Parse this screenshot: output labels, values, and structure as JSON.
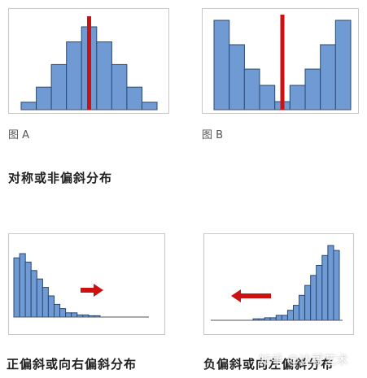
{
  "figures": [
    {
      "caption": "图 A",
      "hist": [
        1,
        3,
        6,
        9,
        11,
        9,
        6,
        3,
        1
      ],
      "direction": "none"
    },
    {
      "caption": "图 B",
      "hist": [
        11,
        8,
        5,
        3,
        1,
        3,
        5,
        8,
        11
      ],
      "direction": "none"
    },
    {
      "caption": "",
      "hist": [
        14,
        15,
        13,
        11,
        9,
        7,
        5,
        3,
        2,
        1,
        1,
        0.5,
        0.5,
        0.3,
        0.3
      ],
      "direction": "right"
    },
    {
      "caption": "",
      "hist": [
        0.3,
        0.3,
        0.5,
        0.5,
        1,
        1,
        2,
        3,
        5,
        7,
        9,
        11,
        13,
        15,
        14
      ],
      "direction": "left"
    }
  ],
  "headings": {
    "symmetric": "对称或非偏斜分布",
    "positive": "正偏斜或向右偏斜分布",
    "negative": "负偏斜或向左偏斜分布"
  },
  "watermark": "知乎 @达哥艺术",
  "colors": {
    "bar": "#6f9ad3",
    "bar_edge": "#274a73",
    "marker": "#cc1111"
  }
}
